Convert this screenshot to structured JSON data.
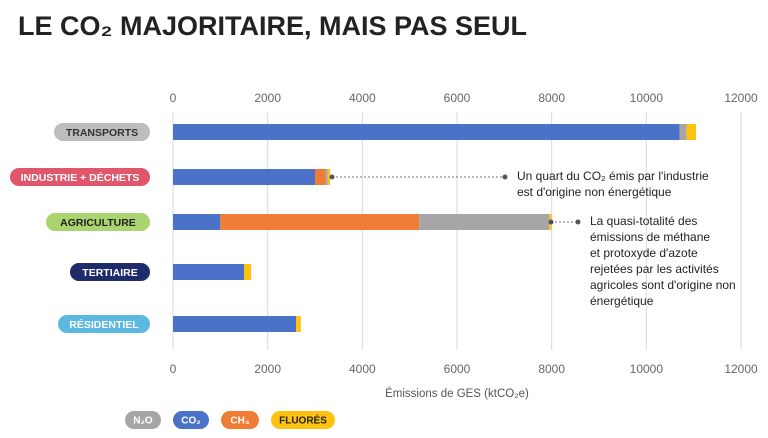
{
  "chart_data": {
    "type": "bar",
    "orientation": "horizontal",
    "stacked": true,
    "title": "LE CO₂ MAJORITAIRE, MAIS PAS SEUL",
    "x_label": "Émissions de GES (ktCO₂e)",
    "categories": [
      "TRANSPORTS",
      "INDUSTRIE + DÉCHETS",
      "AGRICULTURE",
      "TERTIAIRE",
      "RÉSIDENTIEL"
    ],
    "series": [
      {
        "name": "N₂O",
        "color": "#a6a6a6",
        "values": [
          150,
          50,
          2750,
          0,
          0
        ]
      },
      {
        "name": "CO₂",
        "color": "#4a72c8",
        "values": [
          10700,
          3000,
          1000,
          1500,
          2600
        ]
      },
      {
        "name": "CH₄",
        "color": "#ef7d35",
        "values": [
          0,
          220,
          4200,
          0,
          0
        ]
      },
      {
        "name": "FLUORÉS",
        "color": "#ffc20e",
        "values": [
          200,
          50,
          50,
          150,
          100
        ]
      }
    ],
    "xlim": [
      0,
      12000
    ],
    "xticks": [
      0,
      2000,
      4000,
      6000,
      8000,
      10000,
      12000
    ],
    "grid": true,
    "annotations": [
      {
        "lines": [
          "Un quart du CO₂ émis par l'industrie",
          "est d'origine non énergétique"
        ]
      },
      {
        "lines": [
          "La quasi-totalité des",
          "émissions de méthane",
          "et protoxyde d'azote",
          "rejetées par les activités",
          "agricoles sont d'origine non",
          "énergétique"
        ]
      }
    ]
  }
}
